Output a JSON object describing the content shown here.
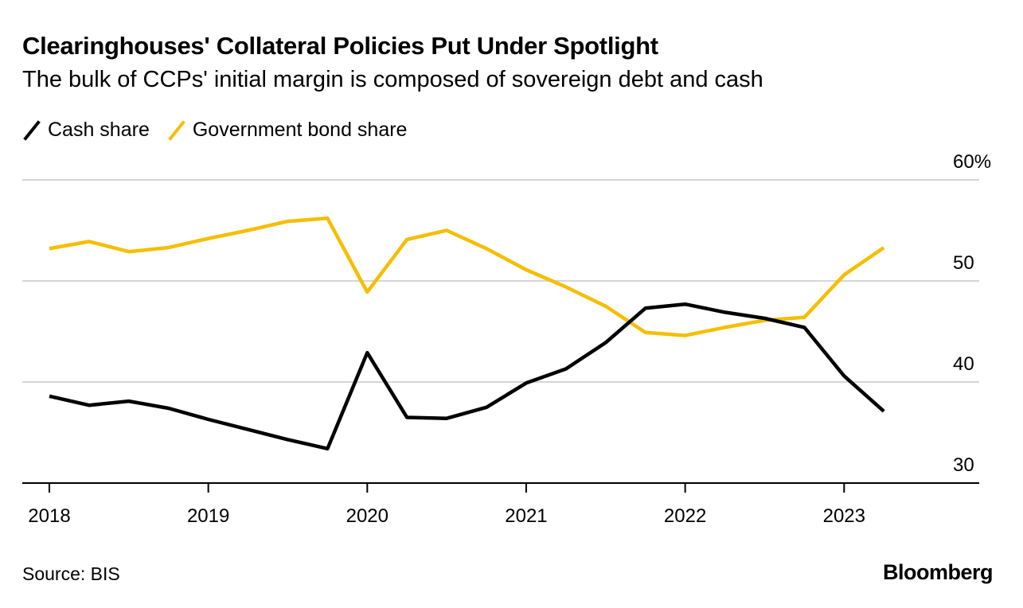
{
  "header": {
    "title": "Clearinghouses' Collateral Policies Put Under Spotlight",
    "subtitle": "The bulk of CCPs' initial margin is composed of sovereign debt and cash"
  },
  "legend": [
    {
      "label": "Cash share",
      "color": "#000000"
    },
    {
      "label": "Government bond share",
      "color": "#F5BE00"
    }
  ],
  "footer": {
    "source": "Source: BIS",
    "brand": "Bloomberg"
  },
  "chart_data": {
    "type": "line",
    "x": [
      2018.0,
      2018.25,
      2018.5,
      2018.75,
      2019.0,
      2019.25,
      2019.5,
      2019.75,
      2020.0,
      2020.25,
      2020.5,
      2020.75,
      2021.0,
      2021.25,
      2021.5,
      2021.75,
      2022.0,
      2022.25,
      2022.5,
      2022.75,
      2023.0,
      2023.25,
      2023.5
    ],
    "series": [
      {
        "name": "Cash share",
        "color": "#000000",
        "values": [
          38.6,
          37.7,
          38.1,
          37.4,
          36.3,
          35.3,
          34.3,
          33.4,
          42.9,
          36.5,
          36.4,
          37.5,
          39.9,
          41.3,
          43.9,
          47.3,
          47.7,
          46.9,
          46.3,
          45.4,
          40.6,
          37.1,
          null
        ]
      },
      {
        "name": "Government bond share",
        "color": "#F5BE00",
        "values": [
          53.2,
          53.9,
          52.9,
          53.3,
          54.2,
          55.0,
          55.9,
          56.2,
          48.9,
          54.1,
          55.0,
          53.2,
          51.1,
          49.4,
          47.5,
          44.9,
          44.6,
          45.4,
          46.1,
          46.4,
          50.6,
          53.3,
          null
        ]
      }
    ],
    "x_dates": "quarterly observations",
    "xlabel": "",
    "ylabel": "",
    "xlim": [
      2018.0,
      2023.85
    ],
    "ylim": [
      30,
      60
    ],
    "x_ticks": [
      2018,
      2019,
      2020,
      2021,
      2022,
      2023
    ],
    "x_tick_labels": [
      "2018",
      "2019",
      "2020",
      "2021",
      "2022",
      "2023"
    ],
    "y_ticks": [
      60,
      50,
      40,
      30
    ],
    "y_tick_labels": [
      "60%",
      "50",
      "40",
      "30"
    ],
    "grid": true,
    "legend_position": "top-left"
  }
}
